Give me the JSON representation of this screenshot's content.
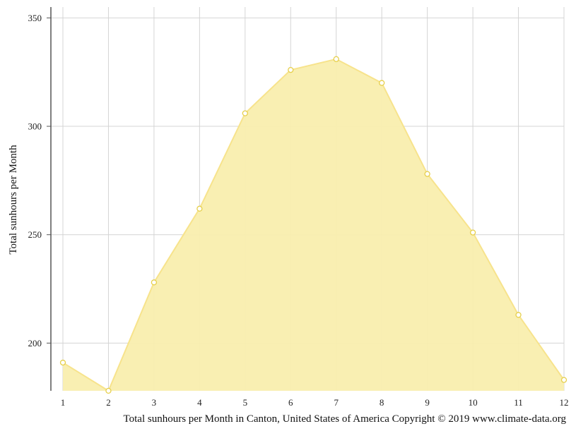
{
  "chart_data": {
    "type": "area",
    "x": [
      1,
      2,
      3,
      4,
      5,
      6,
      7,
      8,
      9,
      10,
      11,
      12
    ],
    "series": [
      {
        "values": [
          191,
          178,
          228,
          262,
          306,
          326,
          331,
          320,
          278,
          251,
          213,
          183
        ]
      }
    ],
    "ylabel": "Total sunhours per Month",
    "xlabel": "",
    "yticks": [
      200,
      250,
      300,
      350
    ],
    "ylim": [
      178,
      355
    ],
    "xlim": [
      1,
      12
    ],
    "grid": true,
    "legend": "none",
    "caption": "Total sunhours per Month in Canton, United States of America Copyright © 2019 www.climate-data.org",
    "colors": {
      "fill": "#f9eeae",
      "line": "#f7e38c",
      "marker_fill": "#ffffff",
      "marker_stroke": "#e6cf4a",
      "grid": "#d4d4d4",
      "axis": "#555555"
    }
  }
}
